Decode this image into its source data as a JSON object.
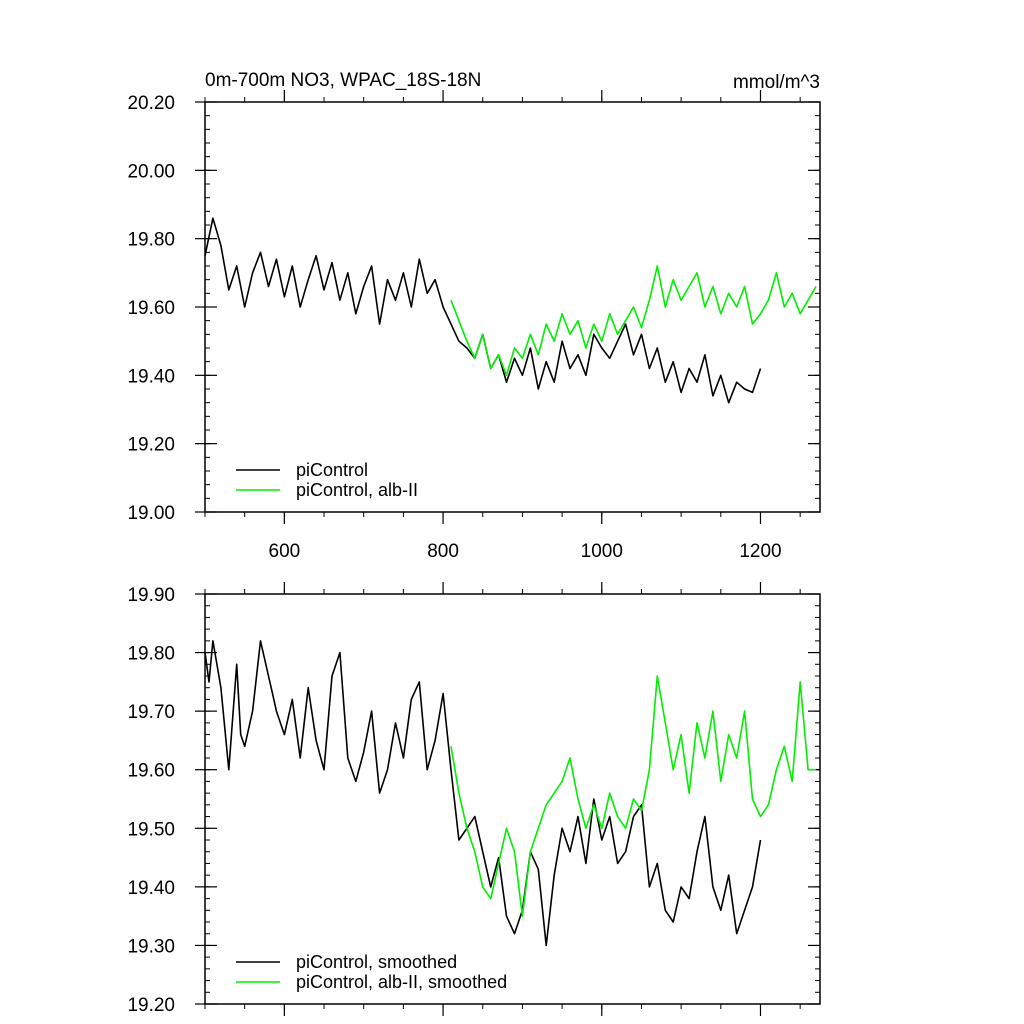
{
  "colors": {
    "picontrol": "#000000",
    "alb": "#00ee00"
  },
  "chart_data": [
    {
      "type": "line",
      "title": "0m-700m NO3, WPAC_18S-18N",
      "units": "mmol/m^3",
      "xlim": [
        500,
        1275
      ],
      "ylim": [
        19.0,
        20.2
      ],
      "x_ticks": [
        600,
        800,
        1000,
        1200
      ],
      "x_tick_labels": [
        "600",
        "800",
        "1000",
        "1200"
      ],
      "y_ticks": [
        19.0,
        19.2,
        19.4,
        19.6,
        19.8,
        20.0,
        20.2
      ],
      "y_tick_labels": [
        "19.00",
        "19.20",
        "19.40",
        "19.60",
        "19.80",
        "20.00",
        "20.20"
      ],
      "legend_position": "bottom-left",
      "series": [
        {
          "name": "piControl",
          "color": "#000000",
          "x": [
            500,
            510,
            520,
            530,
            540,
            550,
            560,
            570,
            580,
            590,
            600,
            610,
            620,
            630,
            640,
            650,
            660,
            670,
            680,
            690,
            700,
            710,
            720,
            730,
            740,
            750,
            760,
            770,
            780,
            790,
            800,
            810,
            820,
            830,
            840,
            850,
            860,
            870,
            880,
            890,
            900,
            910,
            920,
            930,
            940,
            950,
            960,
            970,
            980,
            990,
            1000,
            1010,
            1020,
            1030,
            1040,
            1050,
            1060,
            1070,
            1080,
            1090,
            1100,
            1110,
            1120,
            1130,
            1140,
            1150,
            1160,
            1170,
            1180,
            1190,
            1200
          ],
          "y": [
            19.75,
            19.86,
            19.78,
            19.65,
            19.72,
            19.6,
            19.7,
            19.76,
            19.66,
            19.74,
            19.63,
            19.72,
            19.6,
            19.68,
            19.75,
            19.65,
            19.73,
            19.62,
            19.7,
            19.58,
            19.66,
            19.72,
            19.55,
            19.68,
            19.62,
            19.7,
            19.6,
            19.74,
            19.64,
            19.68,
            19.6,
            19.55,
            19.5,
            19.48,
            19.45,
            19.52,
            19.42,
            19.46,
            19.38,
            19.45,
            19.4,
            19.48,
            19.36,
            19.44,
            19.38,
            19.5,
            19.42,
            19.46,
            19.4,
            19.52,
            19.48,
            19.45,
            19.5,
            19.55,
            19.46,
            19.52,
            19.42,
            19.48,
            19.38,
            19.44,
            19.35,
            19.42,
            19.38,
            19.46,
            19.34,
            19.4,
            19.32,
            19.38,
            19.36,
            19.35,
            19.42
          ]
        },
        {
          "name": "piControl, alb-II",
          "color": "#00ee00",
          "x": [
            810,
            820,
            830,
            840,
            850,
            860,
            870,
            880,
            890,
            900,
            910,
            920,
            930,
            940,
            950,
            960,
            970,
            980,
            990,
            1000,
            1010,
            1020,
            1030,
            1040,
            1050,
            1060,
            1070,
            1080,
            1090,
            1100,
            1110,
            1120,
            1130,
            1140,
            1150,
            1160,
            1170,
            1180,
            1190,
            1200,
            1210,
            1220,
            1230,
            1240,
            1250,
            1260,
            1270
          ],
          "y": [
            19.62,
            19.56,
            19.5,
            19.45,
            19.52,
            19.42,
            19.46,
            19.4,
            19.48,
            19.45,
            19.52,
            19.46,
            19.55,
            19.5,
            19.58,
            19.52,
            19.56,
            19.48,
            19.55,
            19.5,
            19.58,
            19.52,
            19.56,
            19.6,
            19.54,
            19.62,
            19.72,
            19.6,
            19.68,
            19.62,
            19.66,
            19.7,
            19.6,
            19.66,
            19.58,
            19.64,
            19.6,
            19.66,
            19.55,
            19.58,
            19.62,
            19.7,
            19.6,
            19.64,
            19.58,
            19.62,
            19.66
          ]
        }
      ]
    },
    {
      "type": "line",
      "xlim": [
        500,
        1275
      ],
      "ylim": [
        19.2,
        19.9
      ],
      "x_ticks": [
        600,
        800,
        1000,
        1200
      ],
      "x_tick_labels": [],
      "y_ticks": [
        19.2,
        19.3,
        19.4,
        19.5,
        19.6,
        19.7,
        19.8,
        19.9
      ],
      "y_tick_labels": [
        "19.20",
        "19.30",
        "19.40",
        "19.50",
        "19.60",
        "19.70",
        "19.80",
        "19.90"
      ],
      "legend_position": "bottom-left",
      "series": [
        {
          "name": "piControl, smoothed",
          "color": "#000000",
          "x": [
            500,
            505,
            510,
            515,
            520,
            530,
            540,
            545,
            550,
            560,
            570,
            580,
            585,
            590,
            600,
            610,
            620,
            630,
            640,
            650,
            660,
            670,
            680,
            690,
            700,
            710,
            720,
            730,
            740,
            750,
            760,
            770,
            780,
            790,
            800,
            810,
            820,
            830,
            840,
            850,
            860,
            870,
            880,
            890,
            900,
            910,
            920,
            930,
            940,
            950,
            960,
            970,
            980,
            990,
            1000,
            1010,
            1020,
            1030,
            1040,
            1050,
            1060,
            1070,
            1080,
            1090,
            1100,
            1110,
            1120,
            1130,
            1140,
            1150,
            1160,
            1170,
            1180,
            1190,
            1200
          ],
          "y": [
            19.8,
            19.75,
            19.82,
            19.78,
            19.74,
            19.6,
            19.78,
            19.66,
            19.64,
            19.7,
            19.82,
            19.76,
            19.73,
            19.7,
            19.66,
            19.72,
            19.62,
            19.74,
            19.65,
            19.6,
            19.76,
            19.8,
            19.62,
            19.58,
            19.63,
            19.7,
            19.56,
            19.6,
            19.68,
            19.62,
            19.72,
            19.75,
            19.6,
            19.65,
            19.73,
            19.6,
            19.48,
            19.5,
            19.52,
            19.46,
            19.4,
            19.45,
            19.35,
            19.32,
            19.36,
            19.46,
            19.43,
            19.3,
            19.42,
            19.5,
            19.46,
            19.52,
            19.44,
            19.55,
            19.48,
            19.52,
            19.44,
            19.46,
            19.52,
            19.54,
            19.4,
            19.44,
            19.36,
            19.34,
            19.4,
            19.38,
            19.46,
            19.52,
            19.4,
            19.36,
            19.42,
            19.32,
            19.36,
            19.4,
            19.48
          ]
        },
        {
          "name": "piControl, alb-II, smoothed",
          "color": "#00ee00",
          "x": [
            810,
            820,
            830,
            840,
            850,
            860,
            870,
            880,
            890,
            900,
            910,
            920,
            930,
            940,
            950,
            960,
            970,
            980,
            990,
            1000,
            1010,
            1020,
            1030,
            1040,
            1050,
            1060,
            1070,
            1080,
            1090,
            1100,
            1110,
            1120,
            1130,
            1140,
            1150,
            1160,
            1170,
            1180,
            1190,
            1200,
            1210,
            1220,
            1230,
            1240,
            1250,
            1260,
            1270
          ],
          "y": [
            19.64,
            19.56,
            19.5,
            19.46,
            19.4,
            19.38,
            19.44,
            19.5,
            19.46,
            19.35,
            19.46,
            19.5,
            19.54,
            19.56,
            19.58,
            19.62,
            19.55,
            19.5,
            19.54,
            19.5,
            19.56,
            19.52,
            19.5,
            19.55,
            19.53,
            19.6,
            19.76,
            19.68,
            19.6,
            19.66,
            19.56,
            19.68,
            19.62,
            19.7,
            19.58,
            19.66,
            19.62,
            19.7,
            19.55,
            19.52,
            19.54,
            19.6,
            19.64,
            19.58,
            19.75,
            19.6,
            19.6
          ]
        }
      ]
    }
  ]
}
